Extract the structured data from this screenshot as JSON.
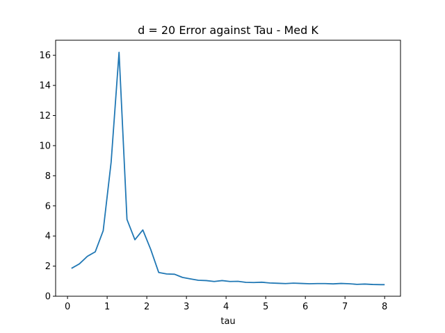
{
  "chart_data": {
    "type": "line",
    "title": "d = 20 Error against Tau - Med K",
    "xlabel": "tau",
    "ylabel": "",
    "xlim": [
      -0.3,
      8.4
    ],
    "ylim": [
      0,
      17
    ],
    "xticks": [
      0,
      1,
      2,
      3,
      4,
      5,
      6,
      7,
      8
    ],
    "yticks": [
      0,
      2,
      4,
      6,
      8,
      10,
      12,
      14,
      16
    ],
    "grid": false,
    "line_color": "#1f77b4",
    "series": [
      {
        "x": [
          0.1,
          0.3,
          0.5,
          0.7,
          0.9,
          1.1,
          1.3,
          1.5,
          1.7,
          1.9,
          2.1,
          2.3,
          2.5,
          2.7,
          2.9,
          3.1,
          3.3,
          3.5,
          3.7,
          3.9,
          4.1,
          4.3,
          4.5,
          4.7,
          4.9,
          5.1,
          5.3,
          5.5,
          5.7,
          5.9,
          6.1,
          6.3,
          6.5,
          6.7,
          6.9,
          7.1,
          7.3,
          7.5,
          7.7,
          7.9,
          8.0
        ],
        "values": [
          1.85,
          2.15,
          2.65,
          2.95,
          4.35,
          8.9,
          16.2,
          5.1,
          3.75,
          4.4,
          3.1,
          1.58,
          1.48,
          1.46,
          1.25,
          1.15,
          1.06,
          1.04,
          0.98,
          1.04,
          0.98,
          0.99,
          0.92,
          0.91,
          0.93,
          0.88,
          0.86,
          0.84,
          0.87,
          0.85,
          0.83,
          0.84,
          0.84,
          0.82,
          0.85,
          0.83,
          0.79,
          0.81,
          0.78,
          0.77,
          0.77
        ]
      }
    ]
  }
}
